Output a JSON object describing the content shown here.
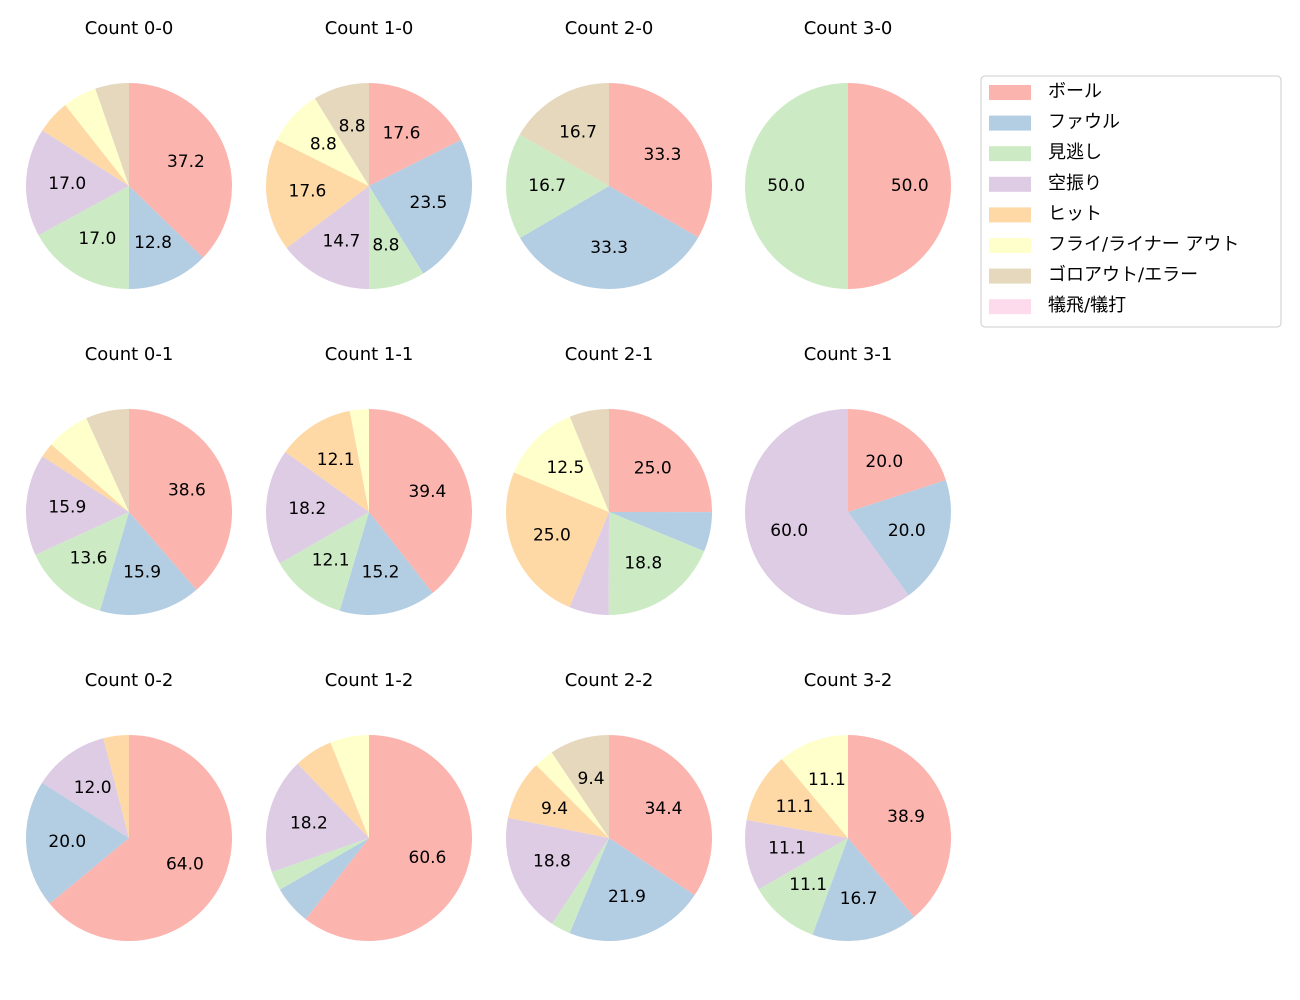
{
  "chart_data": [
    {
      "type": "pie",
      "title": "Count 0-0",
      "values": [
        37.2,
        12.8,
        17.0,
        17.0,
        5.3,
        5.3,
        5.3,
        0
      ],
      "value_labels": [
        "37.2",
        "12.8",
        "17.0",
        "17.0",
        null,
        null,
        null,
        null
      ]
    },
    {
      "type": "pie",
      "title": "Count 1-0",
      "values": [
        17.6,
        23.5,
        8.8,
        14.7,
        17.6,
        8.8,
        8.8,
        0
      ],
      "value_labels": [
        "17.6",
        "23.5",
        "8.8",
        "14.7",
        "17.6",
        "8.8",
        "8.8",
        null
      ]
    },
    {
      "type": "pie",
      "title": "Count 2-0",
      "values": [
        33.3,
        33.3,
        16.7,
        0,
        0,
        0,
        16.7,
        0
      ],
      "value_labels": [
        "33.3",
        "33.3",
        "16.7",
        null,
        null,
        null,
        "16.7",
        null
      ]
    },
    {
      "type": "pie",
      "title": "Count 3-0",
      "values": [
        50.0,
        0,
        50.0,
        0,
        0,
        0,
        0,
        0
      ],
      "value_labels": [
        "50.0",
        null,
        "50.0",
        null,
        null,
        null,
        null,
        null
      ]
    },
    {
      "type": "pie",
      "title": "Count 0-1",
      "values": [
        38.6,
        15.9,
        13.6,
        15.9,
        2.3,
        6.8,
        6.8,
        0
      ],
      "value_labels": [
        "38.6",
        "15.9",
        "13.6",
        "15.9",
        null,
        null,
        null,
        null
      ]
    },
    {
      "type": "pie",
      "title": "Count 1-1",
      "values": [
        39.4,
        15.2,
        12.1,
        18.2,
        12.1,
        3.0,
        0,
        0
      ],
      "value_labels": [
        "39.4",
        "15.2",
        "12.1",
        "18.2",
        "12.1",
        null,
        null,
        null
      ]
    },
    {
      "type": "pie",
      "title": "Count 2-1",
      "values": [
        25.0,
        6.2,
        18.8,
        6.2,
        25.0,
        12.5,
        6.2,
        0
      ],
      "value_labels": [
        "25.0",
        null,
        "18.8",
        null,
        "25.0",
        "12.5",
        null,
        null
      ]
    },
    {
      "type": "pie",
      "title": "Count 3-1",
      "values": [
        20.0,
        20.0,
        0,
        60.0,
        0,
        0,
        0,
        0
      ],
      "value_labels": [
        "20.0",
        "20.0",
        null,
        "60.0",
        null,
        null,
        null,
        null
      ]
    },
    {
      "type": "pie",
      "title": "Count 0-2",
      "values": [
        64.0,
        20.0,
        0,
        12.0,
        4.0,
        0,
        0,
        0
      ],
      "value_labels": [
        "64.0",
        "20.0",
        null,
        "12.0",
        null,
        null,
        null,
        null
      ]
    },
    {
      "type": "pie",
      "title": "Count 1-2",
      "values": [
        60.6,
        6.1,
        3.0,
        18.2,
        6.1,
        6.1,
        0,
        0
      ],
      "value_labels": [
        "60.6",
        null,
        null,
        "18.2",
        null,
        null,
        null,
        null
      ]
    },
    {
      "type": "pie",
      "title": "Count 2-2",
      "values": [
        34.4,
        21.9,
        3.1,
        18.8,
        9.4,
        3.1,
        9.4,
        0
      ],
      "value_labels": [
        "34.4",
        "21.9",
        null,
        "18.8",
        "9.4",
        null,
        "9.4",
        null
      ]
    },
    {
      "type": "pie",
      "title": "Count 3-2",
      "values": [
        38.9,
        16.7,
        11.1,
        11.1,
        11.1,
        11.1,
        0,
        0
      ],
      "value_labels": [
        "38.9",
        "16.7",
        "11.1",
        "11.1",
        "11.1",
        "11.1",
        null,
        null
      ]
    }
  ],
  "legend": {
    "position": "upper right",
    "categories": [
      "ボール",
      "ファウル",
      "見逃し",
      "空振り",
      "ヒット",
      "フライ/ライナー アウト",
      "ゴロアウト/エラー",
      "犠飛/犠打"
    ],
    "colors": [
      "#fbb4ae",
      "#b3cde3",
      "#ccebc5",
      "#decbe4",
      "#fed9a6",
      "#ffffcc",
      "#e5d8bd",
      "#fddaec"
    ]
  }
}
